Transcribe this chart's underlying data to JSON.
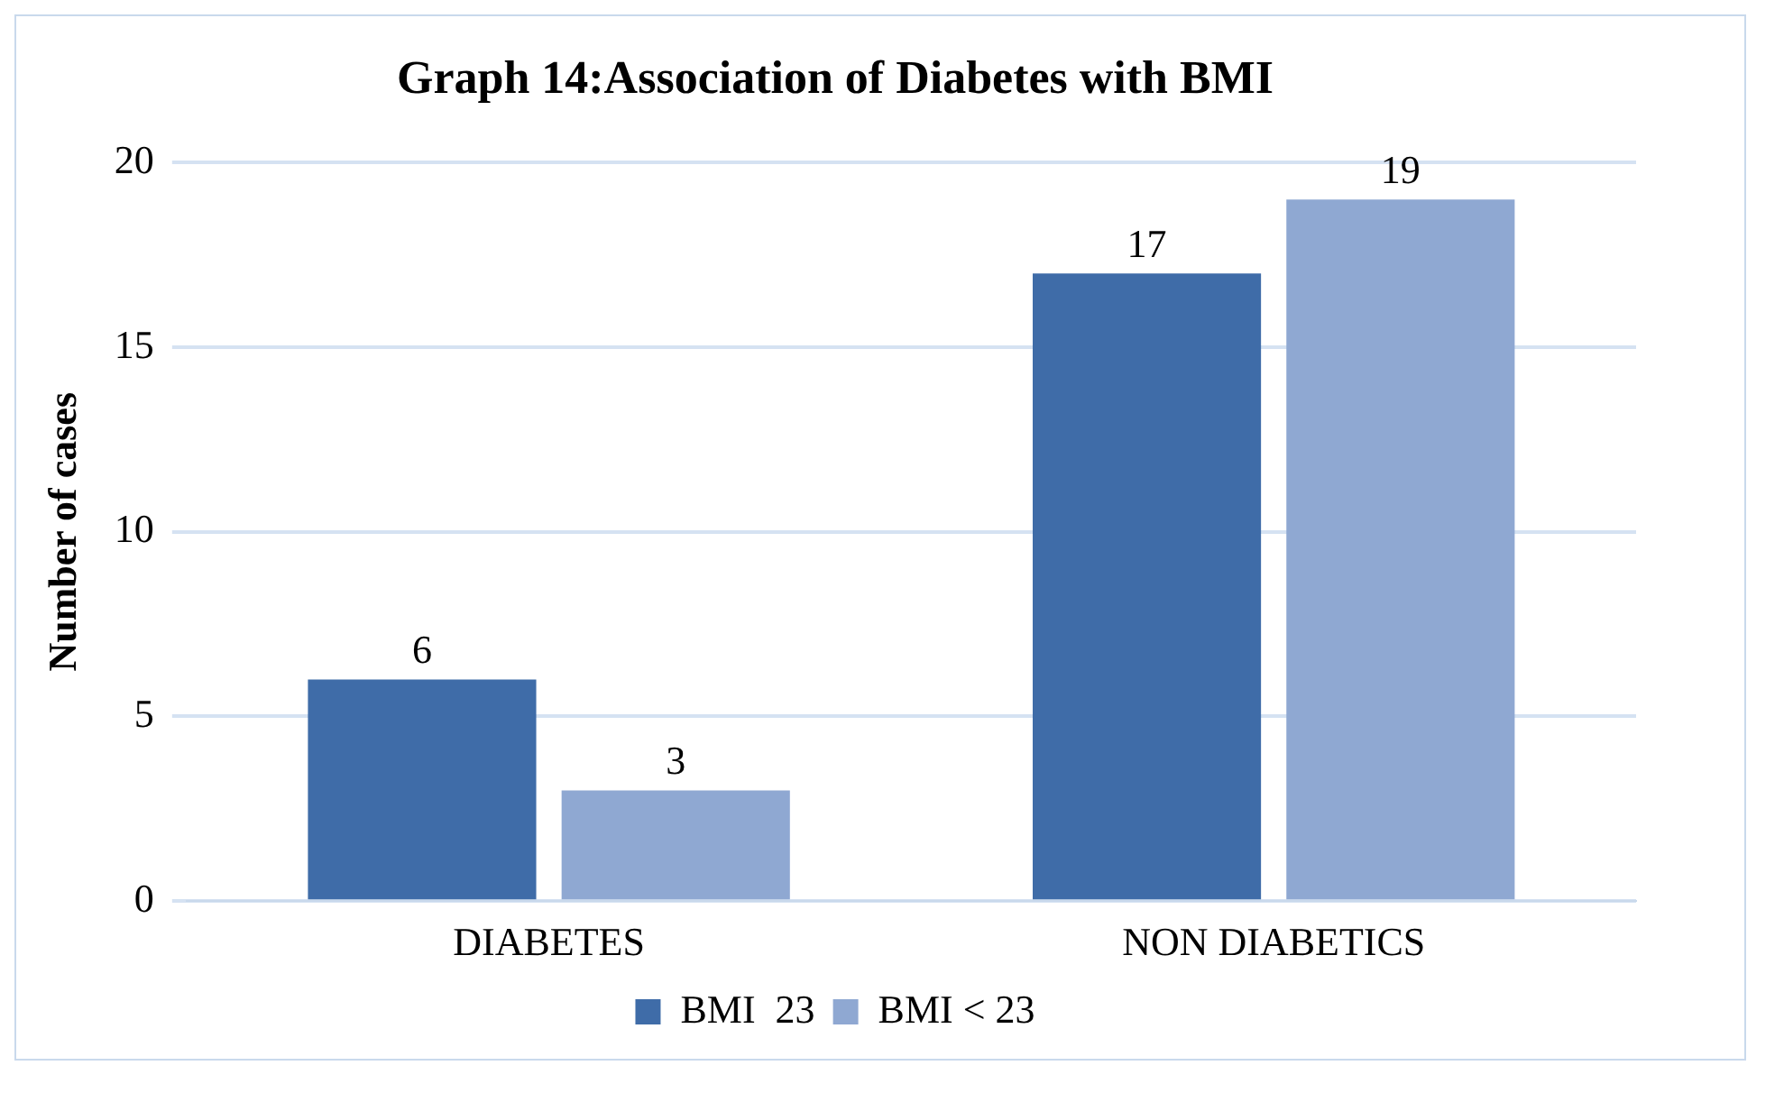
{
  "chart_data": {
    "type": "bar",
    "title": "Graph 14:Association of Diabetes with BMI",
    "ylabel": "Number of cases",
    "categories": [
      "DIABETES",
      "NON DIABETICS"
    ],
    "series": [
      {
        "name": "BMI  23",
        "color": "#3f6ca8",
        "values": [
          6,
          17
        ]
      },
      {
        "name": "BMI < 23",
        "color": "#8fa8d2",
        "values": [
          3,
          19
        ]
      }
    ],
    "ylim": [
      0,
      20
    ],
    "yticks": [
      0,
      5,
      10,
      15,
      20
    ],
    "grid": "y",
    "legend": "bottom",
    "data_labels": true
  }
}
